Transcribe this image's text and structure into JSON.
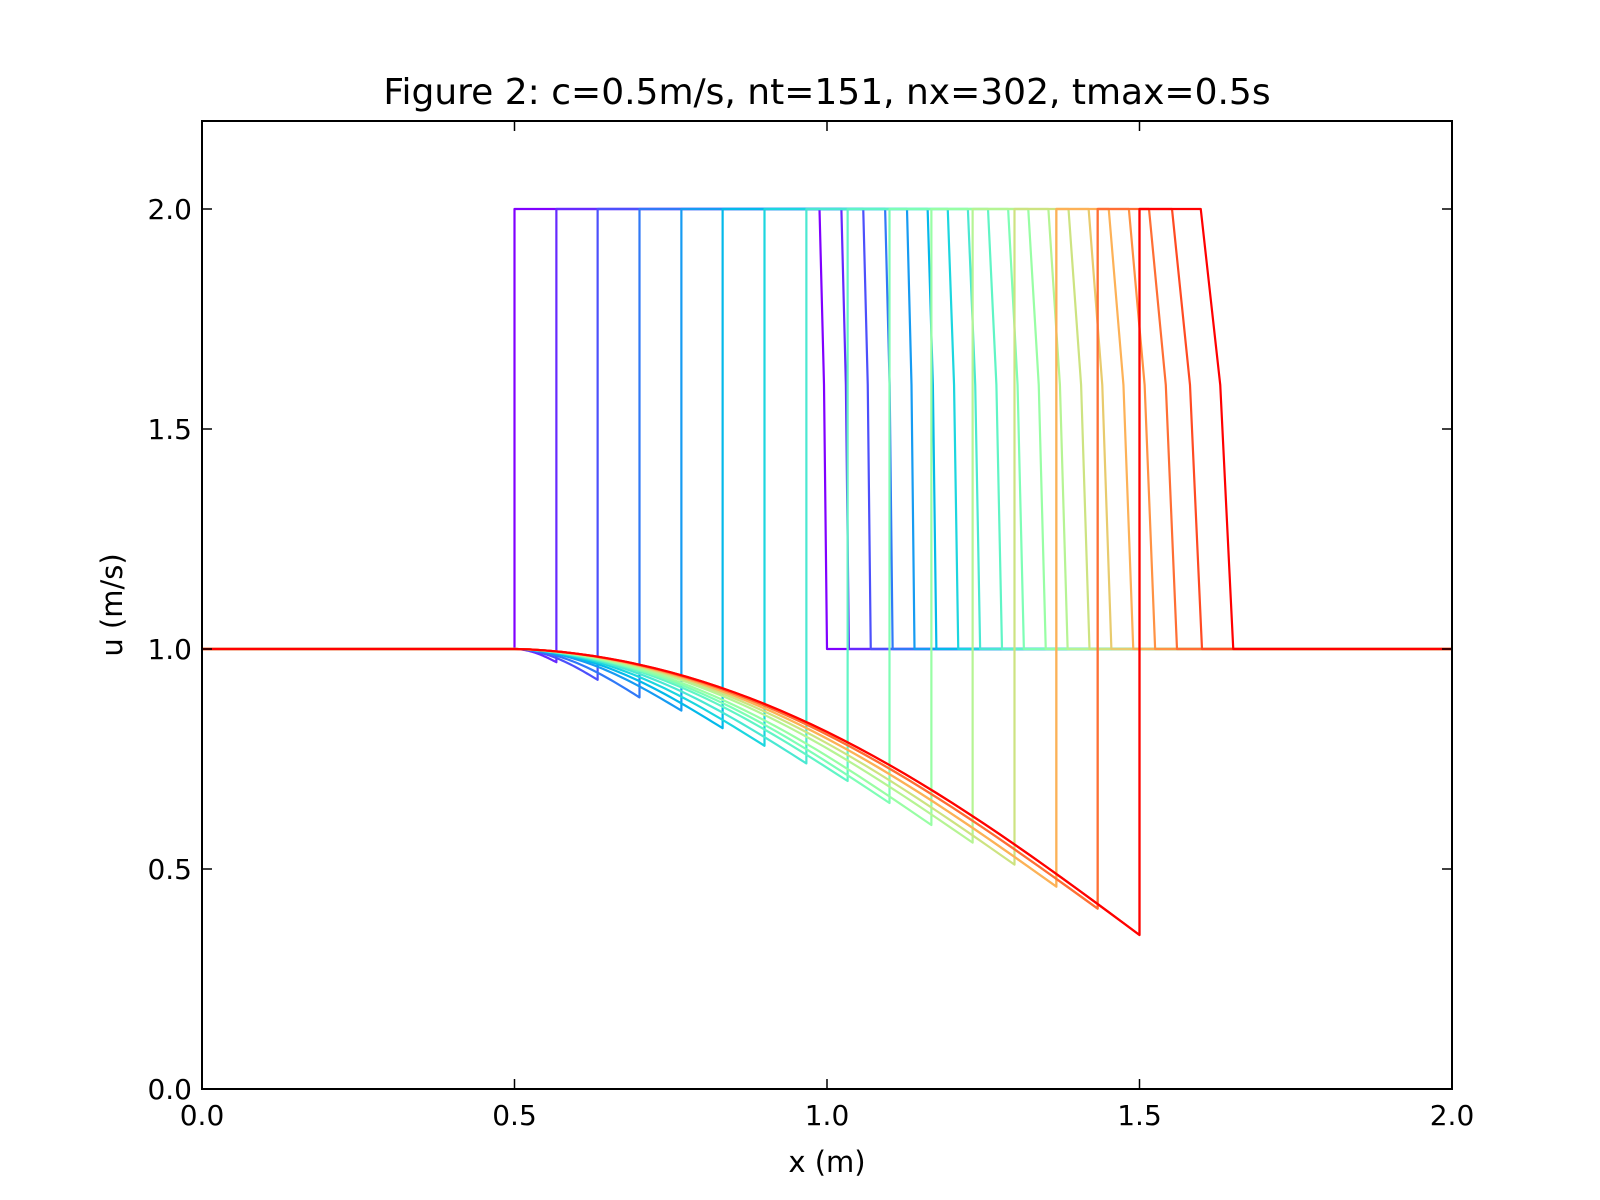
{
  "chart_data": {
    "type": "line",
    "title": "Figure 2: c=0.5m/s, nt=151, nx=302, tmax=0.5s",
    "xlabel": "x (m)",
    "ylabel": "u (m/s)",
    "xlim": [
      0.0,
      2.0
    ],
    "ylim": [
      0.0,
      2.2
    ],
    "xticks": [
      "0.0",
      "0.5",
      "1.0",
      "1.5",
      "2.0"
    ],
    "yticks": [
      "0.0",
      "0.5",
      "1.0",
      "1.5",
      "2.0"
    ],
    "grid": false,
    "legend": "none",
    "colormap": "rainbow",
    "series": [
      {
        "color": "#8000ff",
        "shock_x": 0.5,
        "trough_u": 1.0,
        "front_x": 1.0
      },
      {
        "color": "#6629fe",
        "shock_x": 0.567,
        "trough_u": 0.97,
        "front_x": 1.035
      },
      {
        "color": "#4c50fc",
        "shock_x": 0.633,
        "trough_u": 0.93,
        "front_x": 1.07
      },
      {
        "color": "#3079f7",
        "shock_x": 0.7,
        "trough_u": 0.89,
        "front_x": 1.105
      },
      {
        "color": "#169bf2",
        "shock_x": 0.767,
        "trough_u": 0.86,
        "front_x": 1.14
      },
      {
        "color": "#04b9ea",
        "shock_x": 0.833,
        "trough_u": 0.82,
        "front_x": 1.175
      },
      {
        "color": "#1cd6df",
        "shock_x": 0.9,
        "trough_u": 0.78,
        "front_x": 1.21
      },
      {
        "color": "#4ae8d2",
        "shock_x": 0.967,
        "trough_u": 0.74,
        "front_x": 1.245
      },
      {
        "color": "#60f5c5",
        "shock_x": 1.033,
        "trough_u": 0.7,
        "front_x": 1.28
      },
      {
        "color": "#7efeb5",
        "shock_x": 1.1,
        "trough_u": 0.65,
        "front_x": 1.315
      },
      {
        "color": "#98fea4",
        "shock_x": 1.167,
        "trough_u": 0.6,
        "front_x": 1.35
      },
      {
        "color": "#b6f493",
        "shock_x": 1.233,
        "trough_u": 0.56,
        "front_x": 1.385
      },
      {
        "color": "#cde381",
        "shock_x": 1.3,
        "trough_u": 0.51,
        "front_x": 1.42
      },
      {
        "color": "#e8cb6d",
        "shock_x": 1.367,
        "trough_u": 0.46,
        "front_x": 1.455
      },
      {
        "color": "#fdb157",
        "shock_x": 1.367,
        "trough_u": 0.46,
        "front_x": 1.49
      },
      {
        "color": "#ff9243",
        "shock_x": 1.433,
        "trough_u": 0.41,
        "front_x": 1.525
      },
      {
        "color": "#ff6e34",
        "shock_x": 1.433,
        "trough_u": 0.41,
        "front_x": 1.56
      },
      {
        "color": "#ff4a22",
        "shock_x": 1.5,
        "trough_u": 0.35,
        "front_x": 1.6
      },
      {
        "color": "#ff0000",
        "shock_x": 1.5,
        "trough_u": 0.35,
        "front_x": 1.65
      }
    ]
  }
}
